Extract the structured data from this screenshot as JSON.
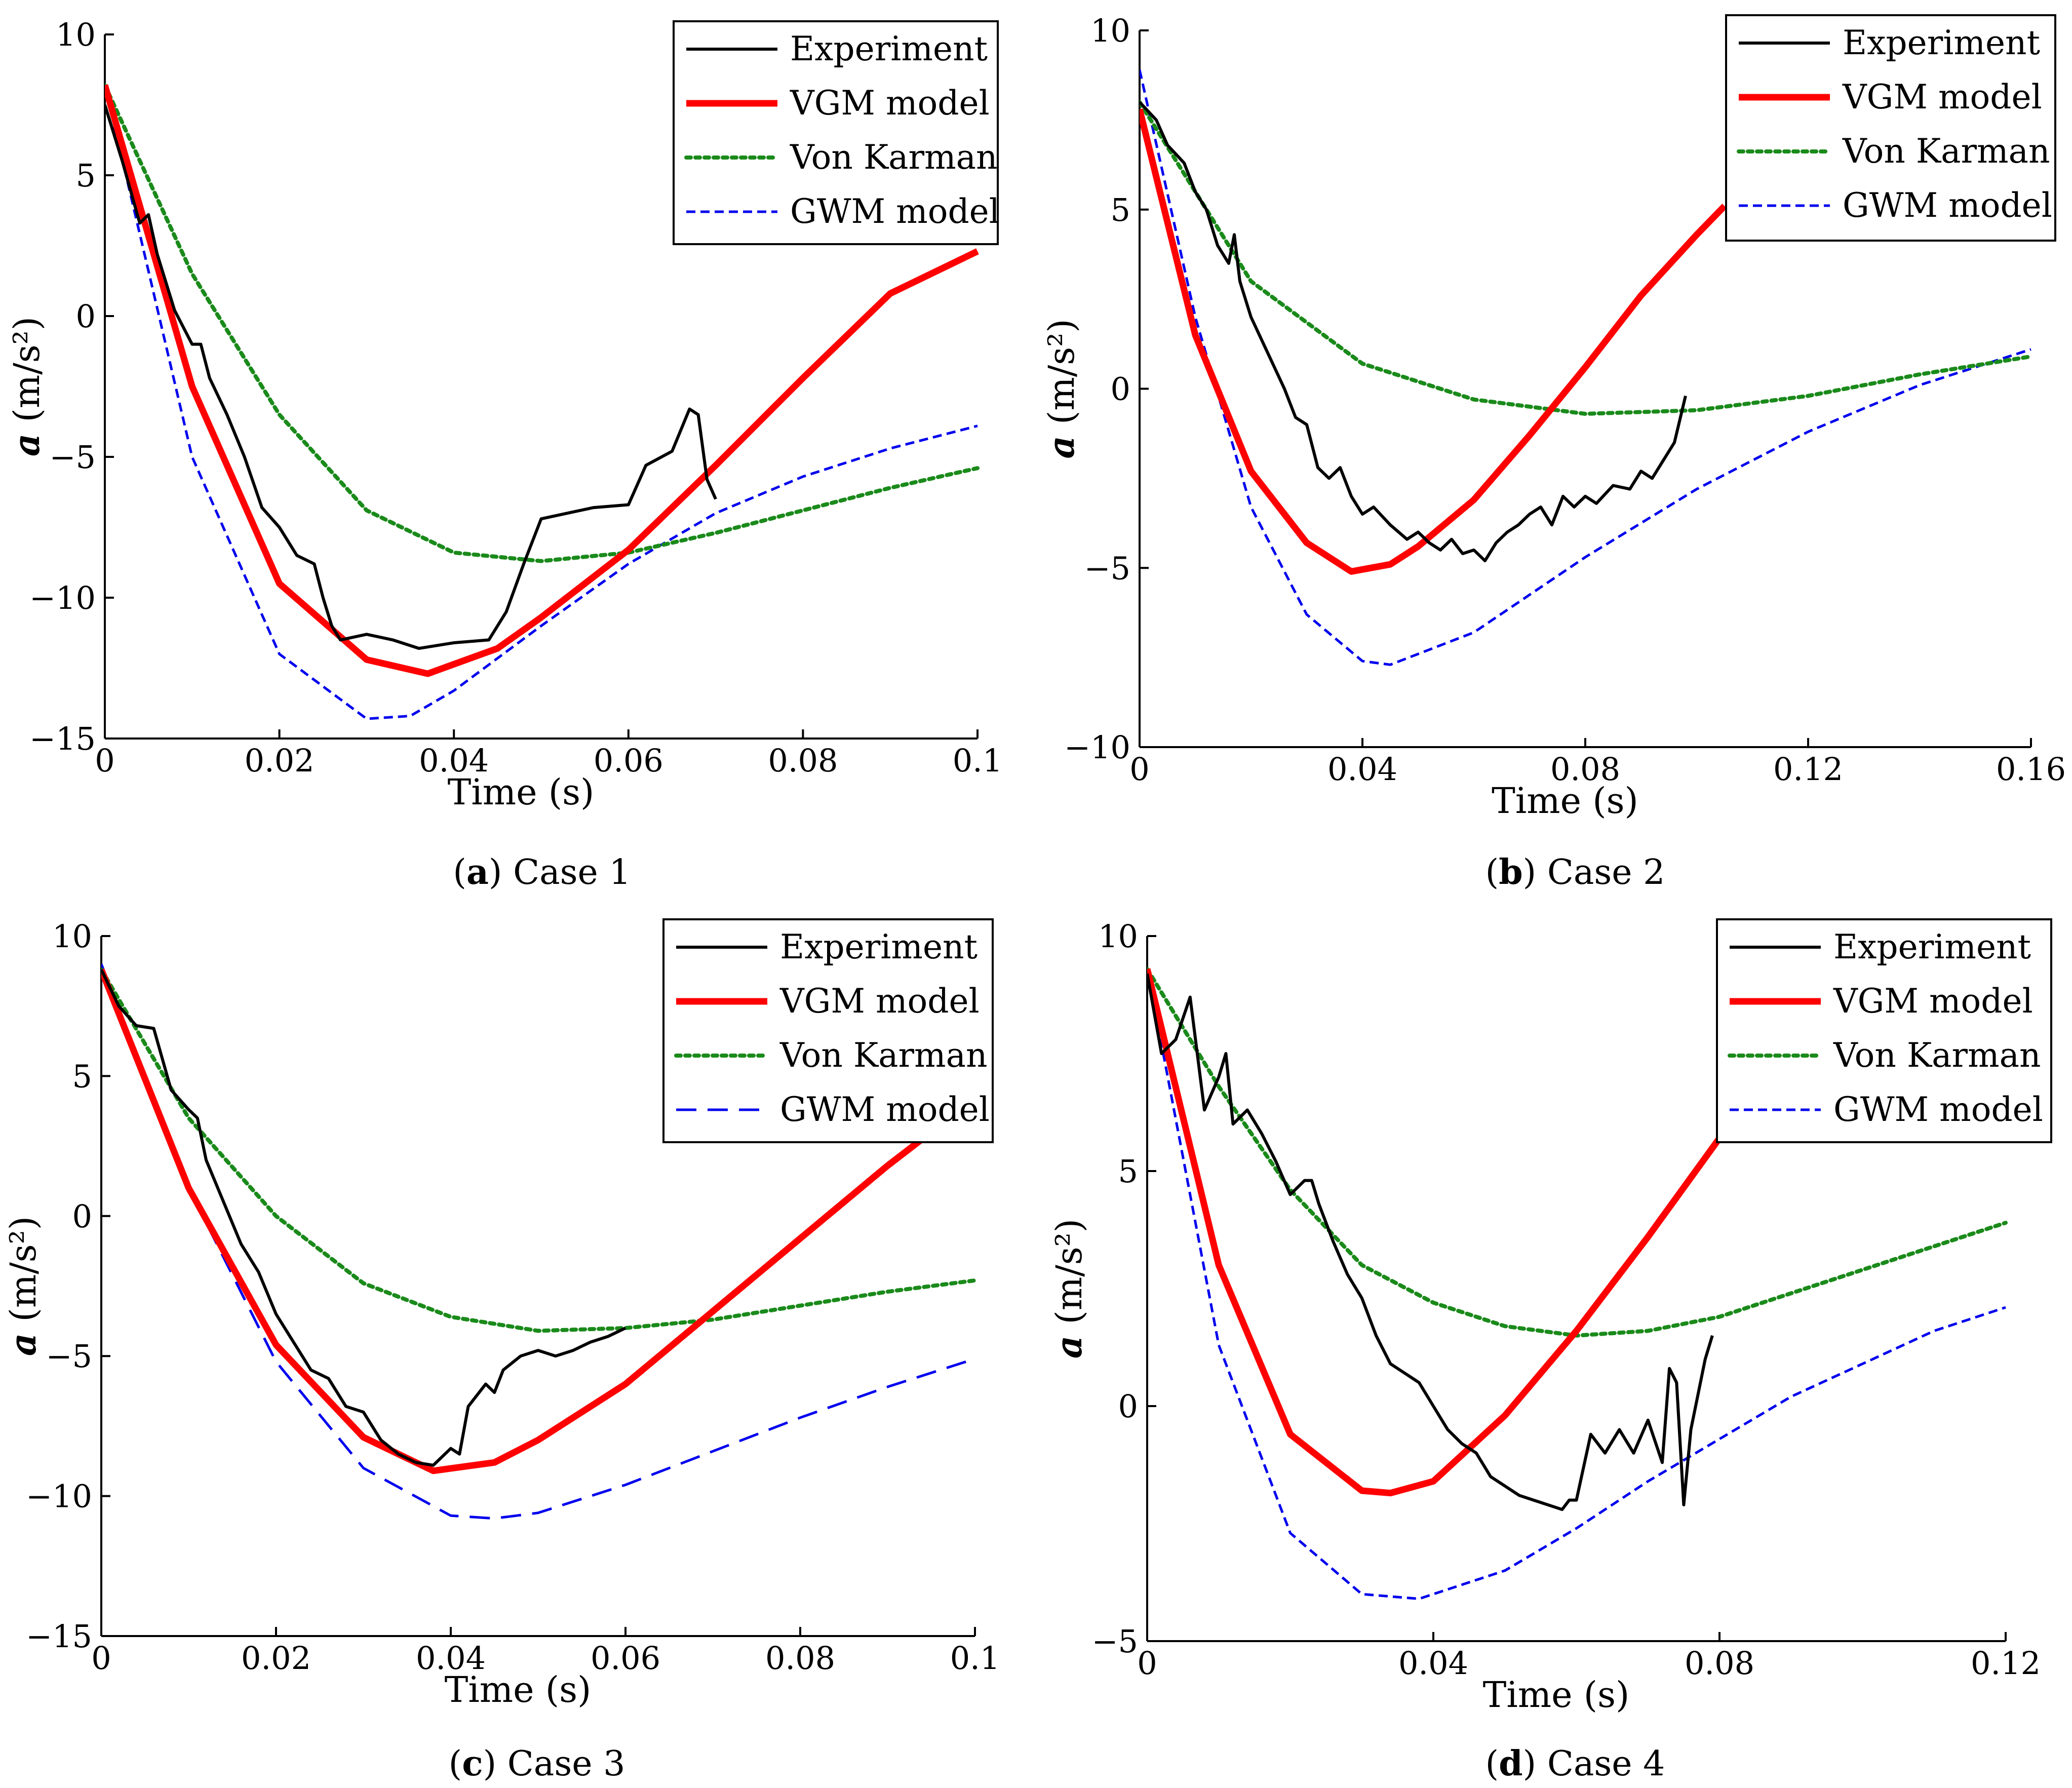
{
  "colors": {
    "Experiment": "#000000",
    "VGM model": "#ff0000",
    "Von Karman": "#1a8a1a",
    "GWM model": "#0000ee"
  },
  "chart_data": [
    {
      "type": "line",
      "caption_letter": "a",
      "caption_text": "Case 1",
      "xlabel": "Time (s)",
      "ylabel_symbol": "a",
      "ylabel_unit": "(m/s²)",
      "xlim": [
        0,
        0.1
      ],
      "ylim": [
        -15,
        10
      ],
      "xticks": [
        0,
        0.02,
        0.04,
        0.06,
        0.08,
        0.1
      ],
      "xtick_labels": [
        "0",
        "0.02",
        "0.04",
        "0.06",
        "0.08",
        "0.1"
      ],
      "yticks": [
        -15,
        -10,
        -5,
        0,
        5,
        10
      ],
      "ytick_labels": [
        "−15",
        "−10",
        "−5",
        "0",
        "5",
        "10"
      ],
      "legend_position": "top-right",
      "legend": [
        "Experiment",
        "VGM model",
        "Von Karman",
        "GWM model"
      ],
      "series": [
        {
          "name": "Experiment",
          "x": [
            0,
            0.002,
            0.004,
            0.005,
            0.006,
            0.008,
            0.01,
            0.011,
            0.012,
            0.014,
            0.016,
            0.018,
            0.02,
            0.022,
            0.024,
            0.025,
            0.026,
            0.027,
            0.03,
            0.033,
            0.036,
            0.04,
            0.044,
            0.046,
            0.048,
            0.05,
            0.053,
            0.056,
            0.06,
            0.062,
            0.065,
            0.067,
            0.068,
            0.069,
            0.07
          ],
          "y": [
            7.5,
            5.5,
            3.3,
            3.6,
            2.2,
            0.2,
            -1.0,
            -1.0,
            -2.2,
            -3.5,
            -5.0,
            -6.8,
            -7.5,
            -8.5,
            -8.8,
            -10.0,
            -11.0,
            -11.5,
            -11.3,
            -11.5,
            -11.8,
            -11.6,
            -11.5,
            -10.5,
            -8.8,
            -7.2,
            -7.0,
            -6.8,
            -6.7,
            -5.3,
            -4.8,
            -3.3,
            -3.5,
            -5.8,
            -6.5
          ]
        },
        {
          "name": "VGM model",
          "x": [
            0,
            0.01,
            0.02,
            0.03,
            0.037,
            0.045,
            0.05,
            0.06,
            0.07,
            0.08,
            0.09,
            0.1
          ],
          "y": [
            8.2,
            -2.5,
            -9.5,
            -12.2,
            -12.7,
            -11.8,
            -10.7,
            -8.3,
            -5.3,
            -2.2,
            0.8,
            2.3
          ]
        },
        {
          "name": "Von Karman",
          "x": [
            0,
            0.01,
            0.02,
            0.03,
            0.04,
            0.05,
            0.06,
            0.07,
            0.08,
            0.09,
            0.1
          ],
          "y": [
            8.2,
            1.5,
            -3.5,
            -6.9,
            -8.4,
            -8.7,
            -8.4,
            -7.7,
            -6.9,
            -6.1,
            -5.4
          ]
        },
        {
          "name": "GWM model",
          "x": [
            0,
            0.01,
            0.02,
            0.03,
            0.035,
            0.04,
            0.05,
            0.06,
            0.07,
            0.08,
            0.09,
            0.1
          ],
          "y": [
            8.2,
            -5.0,
            -12.0,
            -14.3,
            -14.2,
            -13.3,
            -11.0,
            -8.8,
            -7.0,
            -5.7,
            -4.7,
            -3.9
          ]
        }
      ]
    },
    {
      "type": "line",
      "caption_letter": "b",
      "caption_text": "Case 2",
      "xlabel": "Time (s)",
      "ylabel_symbol": "a",
      "ylabel_unit": "(m/s²)",
      "xlim": [
        0,
        0.16
      ],
      "ylim": [
        -10,
        10
      ],
      "xticks": [
        0,
        0.04,
        0.08,
        0.12,
        0.16
      ],
      "xtick_labels": [
        "0",
        "0.04",
        "0.08",
        "0.12",
        "0.16"
      ],
      "yticks": [
        -10,
        -5,
        0,
        5,
        10
      ],
      "ytick_labels": [
        "−10",
        "−5",
        "0",
        "5",
        "10"
      ],
      "legend_position": "top-right",
      "legend": [
        "Experiment",
        "VGM model",
        "Von Karman",
        "GWM model"
      ],
      "series": [
        {
          "name": "Experiment",
          "x": [
            0,
            0.003,
            0.005,
            0.008,
            0.01,
            0.012,
            0.014,
            0.016,
            0.017,
            0.018,
            0.02,
            0.023,
            0.026,
            0.028,
            0.03,
            0.032,
            0.034,
            0.036,
            0.038,
            0.04,
            0.042,
            0.045,
            0.048,
            0.05,
            0.052,
            0.054,
            0.056,
            0.058,
            0.06,
            0.062,
            0.064,
            0.066,
            0.068,
            0.07,
            0.072,
            0.074,
            0.076,
            0.078,
            0.08,
            0.082,
            0.085,
            0.088,
            0.09,
            0.092,
            0.094,
            0.096,
            0.098
          ],
          "y": [
            8.0,
            7.5,
            6.8,
            6.3,
            5.5,
            5.0,
            4.0,
            3.5,
            4.3,
            3.0,
            2.0,
            1.0,
            0.0,
            -0.8,
            -1.0,
            -2.2,
            -2.5,
            -2.2,
            -3.0,
            -3.5,
            -3.3,
            -3.8,
            -4.2,
            -4.0,
            -4.3,
            -4.5,
            -4.2,
            -4.6,
            -4.5,
            -4.8,
            -4.3,
            -4.0,
            -3.8,
            -3.5,
            -3.3,
            -3.8,
            -3.0,
            -3.3,
            -3.0,
            -3.2,
            -2.7,
            -2.8,
            -2.3,
            -2.5,
            -2.0,
            -1.5,
            -0.2
          ]
        },
        {
          "name": "VGM model",
          "x": [
            0,
            0.01,
            0.02,
            0.03,
            0.038,
            0.045,
            0.05,
            0.06,
            0.07,
            0.08,
            0.09,
            0.1,
            0.105
          ],
          "y": [
            7.8,
            1.5,
            -2.3,
            -4.3,
            -5.1,
            -4.9,
            -4.4,
            -3.1,
            -1.3,
            0.6,
            2.6,
            4.3,
            5.1
          ]
        },
        {
          "name": "Von Karman",
          "x": [
            0,
            0.02,
            0.04,
            0.06,
            0.08,
            0.1,
            0.12,
            0.14,
            0.16
          ],
          "y": [
            8.0,
            3.0,
            0.7,
            -0.3,
            -0.7,
            -0.6,
            -0.2,
            0.4,
            0.9
          ]
        },
        {
          "name": "GWM model",
          "x": [
            0,
            0.01,
            0.02,
            0.03,
            0.04,
            0.045,
            0.06,
            0.08,
            0.1,
            0.12,
            0.14,
            0.16
          ],
          "y": [
            8.9,
            2.0,
            -3.3,
            -6.3,
            -7.6,
            -7.7,
            -6.8,
            -4.7,
            -2.8,
            -1.2,
            0.1,
            1.1
          ]
        }
      ]
    },
    {
      "type": "line",
      "caption_letter": "c",
      "caption_text": "Case 3",
      "xlabel": "Time (s)",
      "ylabel_symbol": "a",
      "ylabel_unit": "(m/s²)",
      "xlim": [
        0,
        0.1
      ],
      "ylim": [
        -15,
        10
      ],
      "xticks": [
        0,
        0.02,
        0.04,
        0.06,
        0.08,
        0.1
      ],
      "xtick_labels": [
        "0",
        "0.02",
        "0.04",
        "0.06",
        "0.08",
        "0.1"
      ],
      "yticks": [
        -15,
        -10,
        -5,
        0,
        5,
        10
      ],
      "ytick_labels": [
        "−15",
        "−10",
        "−5",
        "0",
        "5",
        "10"
      ],
      "legend_position": "top-right",
      "legend": [
        "Experiment",
        "VGM model",
        "Von Karman",
        "GWM model"
      ],
      "series": [
        {
          "name": "Experiment",
          "x": [
            0,
            0.002,
            0.004,
            0.006,
            0.008,
            0.01,
            0.011,
            0.012,
            0.014,
            0.016,
            0.018,
            0.02,
            0.022,
            0.024,
            0.026,
            0.028,
            0.03,
            0.032,
            0.034,
            0.036,
            0.038,
            0.04,
            0.041,
            0.042,
            0.044,
            0.045,
            0.046,
            0.048,
            0.05,
            0.052,
            0.054,
            0.056,
            0.058,
            0.06
          ],
          "y": [
            8.8,
            7.5,
            6.8,
            6.7,
            4.5,
            3.8,
            3.5,
            2.0,
            0.5,
            -1.0,
            -2.0,
            -3.5,
            -4.5,
            -5.5,
            -5.8,
            -6.8,
            -7.0,
            -8.0,
            -8.5,
            -8.8,
            -8.9,
            -8.3,
            -8.5,
            -6.8,
            -6.0,
            -6.3,
            -5.5,
            -5.0,
            -4.8,
            -5.0,
            -4.8,
            -4.5,
            -4.3,
            -4.0
          ]
        },
        {
          "name": "VGM model",
          "x": [
            0,
            0.01,
            0.02,
            0.03,
            0.038,
            0.045,
            0.05,
            0.06,
            0.07,
            0.08,
            0.09,
            0.1
          ],
          "y": [
            8.8,
            1.0,
            -4.6,
            -7.9,
            -9.1,
            -8.8,
            -8.0,
            -6.0,
            -3.4,
            -0.8,
            1.8,
            4.2
          ]
        },
        {
          "name": "Von Karman",
          "x": [
            0,
            0.01,
            0.02,
            0.03,
            0.04,
            0.05,
            0.06,
            0.07,
            0.08,
            0.09,
            0.1
          ],
          "y": [
            8.8,
            3.5,
            0.0,
            -2.4,
            -3.6,
            -4.1,
            -4.0,
            -3.7,
            -3.2,
            -2.7,
            -2.3
          ]
        },
        {
          "name": "GWM model",
          "x": [
            0,
            0.01,
            0.02,
            0.03,
            0.04,
            0.045,
            0.05,
            0.06,
            0.07,
            0.08,
            0.09,
            0.1
          ],
          "y": [
            9.0,
            1.0,
            -5.2,
            -9.0,
            -10.7,
            -10.8,
            -10.6,
            -9.6,
            -8.4,
            -7.2,
            -6.1,
            -5.1
          ]
        }
      ]
    },
    {
      "type": "line",
      "caption_letter": "d",
      "caption_text": "Case 4",
      "xlabel": "Time (s)",
      "ylabel_symbol": "a",
      "ylabel_unit": "(m/s²)",
      "xlim": [
        0,
        0.12
      ],
      "ylim": [
        -5,
        10
      ],
      "xticks": [
        0,
        0.04,
        0.08,
        0.12
      ],
      "xtick_labels": [
        "0",
        "0.04",
        "0.08",
        "0.12"
      ],
      "yticks": [
        -5,
        0,
        5,
        10
      ],
      "ytick_labels": [
        "−5",
        "0",
        "5",
        "10"
      ],
      "legend_position": "top-right",
      "legend": [
        "Experiment",
        "VGM model",
        "Von Karman",
        "GWM model"
      ],
      "series": [
        {
          "name": "Experiment",
          "x": [
            0,
            0.002,
            0.004,
            0.006,
            0.008,
            0.01,
            0.011,
            0.012,
            0.014,
            0.016,
            0.018,
            0.02,
            0.022,
            0.023,
            0.024,
            0.026,
            0.028,
            0.03,
            0.032,
            0.034,
            0.036,
            0.038,
            0.04,
            0.042,
            0.044,
            0.046,
            0.048,
            0.05,
            0.052,
            0.054,
            0.056,
            0.058,
            0.059,
            0.06,
            0.062,
            0.064,
            0.066,
            0.068,
            0.07,
            0.072,
            0.073,
            0.074,
            0.075,
            0.076,
            0.078,
            0.079
          ],
          "y": [
            9.2,
            7.5,
            7.8,
            8.7,
            6.3,
            7.0,
            7.5,
            6.0,
            6.3,
            5.8,
            5.2,
            4.5,
            4.8,
            4.8,
            4.3,
            3.5,
            2.8,
            2.3,
            1.5,
            0.9,
            0.7,
            0.5,
            0.0,
            -0.5,
            -0.8,
            -1.0,
            -1.5,
            -1.7,
            -1.9,
            -2.0,
            -2.1,
            -2.2,
            -2.0,
            -2.0,
            -0.6,
            -1.0,
            -0.5,
            -1.0,
            -0.3,
            -1.2,
            0.8,
            0.5,
            -2.1,
            -0.5,
            1.0,
            1.5
          ]
        },
        {
          "name": "VGM model",
          "x": [
            0,
            0.01,
            0.02,
            0.03,
            0.034,
            0.04,
            0.05,
            0.06,
            0.07,
            0.08
          ],
          "y": [
            9.3,
            3.0,
            -0.6,
            -1.8,
            -1.85,
            -1.6,
            -0.2,
            1.6,
            3.6,
            5.7
          ]
        },
        {
          "name": "Von Karman",
          "x": [
            0,
            0.01,
            0.02,
            0.03,
            0.04,
            0.05,
            0.06,
            0.07,
            0.08,
            0.09,
            0.1,
            0.11,
            0.12
          ],
          "y": [
            9.3,
            6.8,
            4.6,
            3.0,
            2.2,
            1.7,
            1.5,
            1.6,
            1.9,
            2.4,
            2.9,
            3.4,
            3.9
          ]
        },
        {
          "name": "GWM model",
          "x": [
            0,
            0.01,
            0.02,
            0.03,
            0.038,
            0.05,
            0.06,
            0.07,
            0.08,
            0.09,
            0.1,
            0.11,
            0.12
          ],
          "y": [
            9.3,
            1.3,
            -2.7,
            -4.0,
            -4.1,
            -3.5,
            -2.6,
            -1.6,
            -0.7,
            0.2,
            0.9,
            1.6,
            2.1
          ]
        }
      ]
    }
  ]
}
